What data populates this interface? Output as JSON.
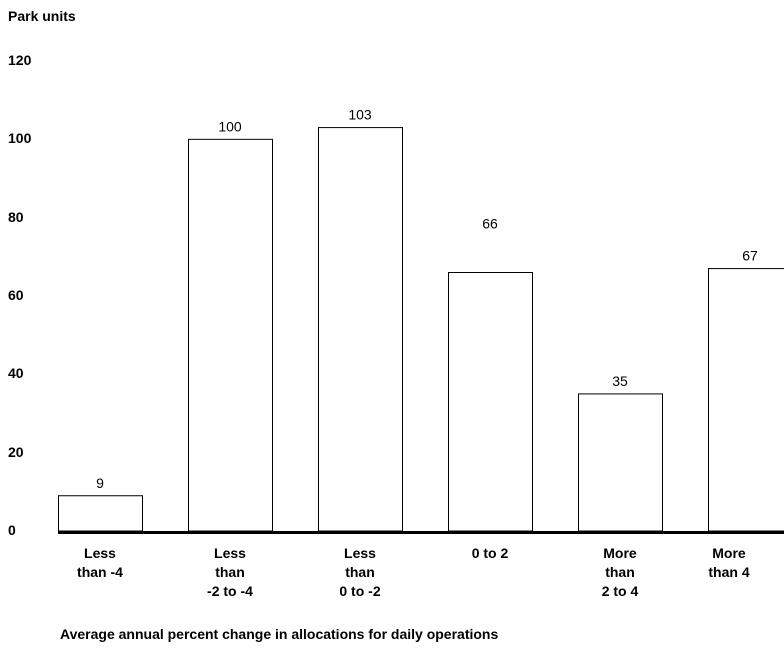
{
  "chart_data": {
    "type": "bar",
    "ylabel": "Park units",
    "xlabel": "Average annual percent change in allocations for daily operations",
    "categories": [
      "Less\nthan -4",
      "Less\nthan\n-2 to -4",
      "Less\nthan\n0 to -2",
      "0 to 2",
      "More\nthan\n2 to 4",
      "More\nthan 4"
    ],
    "values": [
      9,
      100,
      103,
      66,
      35,
      67
    ],
    "data_labels": [
      "9",
      "100",
      "103",
      "66",
      "35",
      "67"
    ],
    "ylim": [
      0,
      120
    ],
    "yticks": [
      "0",
      "20",
      "40",
      "60",
      "80",
      "100",
      "120"
    ],
    "grid": false,
    "legend": "none"
  }
}
